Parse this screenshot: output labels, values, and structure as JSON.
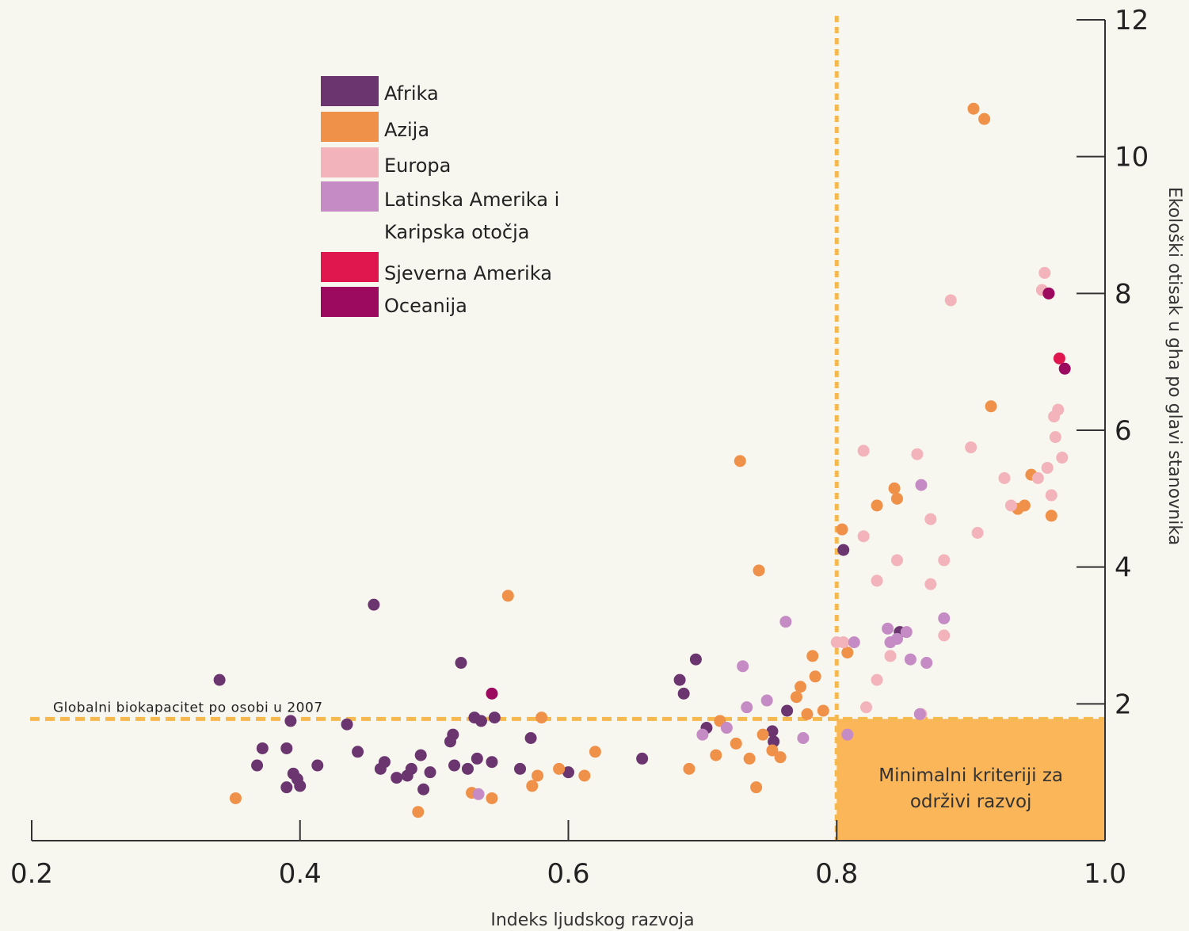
{
  "chart_data": {
    "type": "scatter",
    "xlabel": "Indeks ljudskog razvoja",
    "ylabel": "Ekološki otisak u gha po glavi stanovnika",
    "xlim": [
      0.2,
      1.0
    ],
    "ylim": [
      0,
      12
    ],
    "x_ticks": [
      "0.2",
      "0.4",
      "0.6",
      "0.8",
      "1.0"
    ],
    "y_ticks": [
      "2",
      "4",
      "6",
      "8",
      "10",
      "12"
    ],
    "y_axis_position": "right",
    "grid": false,
    "legend_position": "top-left",
    "annotations": {
      "biocapacity_label": "Globalni biokapacitet po osobi u 2007",
      "biocapacity_y": 1.78,
      "hdi_threshold_x": 0.8,
      "sustainable_box_line1": "Minimalni kriteriji za",
      "sustainable_box_line2": "održivi razvoj"
    },
    "series": [
      {
        "name": "Afrika",
        "color": "#6b3670",
        "points": [
          [
            0.34,
            2.35
          ],
          [
            0.368,
            1.1
          ],
          [
            0.372,
            1.35
          ],
          [
            0.39,
            0.78
          ],
          [
            0.39,
            1.35
          ],
          [
            0.393,
            1.75
          ],
          [
            0.395,
            0.98
          ],
          [
            0.398,
            0.9
          ],
          [
            0.4,
            0.8
          ],
          [
            0.413,
            1.1
          ],
          [
            0.435,
            1.7
          ],
          [
            0.443,
            1.3
          ],
          [
            0.455,
            3.45
          ],
          [
            0.46,
            1.05
          ],
          [
            0.463,
            1.15
          ],
          [
            0.472,
            0.92
          ],
          [
            0.48,
            0.95
          ],
          [
            0.483,
            1.05
          ],
          [
            0.49,
            1.25
          ],
          [
            0.492,
            0.75
          ],
          [
            0.497,
            1.0
          ],
          [
            0.512,
            1.45
          ],
          [
            0.514,
            1.55
          ],
          [
            0.515,
            1.1
          ],
          [
            0.52,
            2.6
          ],
          [
            0.525,
            1.05
          ],
          [
            0.53,
            1.8
          ],
          [
            0.532,
            1.2
          ],
          [
            0.535,
            1.75
          ],
          [
            0.543,
            1.15
          ],
          [
            0.545,
            1.8
          ],
          [
            0.564,
            1.05
          ],
          [
            0.572,
            1.5
          ],
          [
            0.6,
            1.0
          ],
          [
            0.655,
            1.2
          ],
          [
            0.683,
            2.35
          ],
          [
            0.686,
            2.15
          ],
          [
            0.695,
            2.65
          ],
          [
            0.703,
            1.65
          ],
          [
            0.752,
            1.6
          ],
          [
            0.753,
            1.45
          ],
          [
            0.763,
            1.9
          ],
          [
            0.805,
            4.25
          ],
          [
            0.847,
            3.05
          ]
        ]
      },
      {
        "name": "Azija",
        "color": "#f0914a",
        "points": [
          [
            0.352,
            0.62
          ],
          [
            0.488,
            0.42
          ],
          [
            0.528,
            0.7
          ],
          [
            0.543,
            0.62
          ],
          [
            0.555,
            3.58
          ],
          [
            0.573,
            0.8
          ],
          [
            0.577,
            0.95
          ],
          [
            0.58,
            1.8
          ],
          [
            0.593,
            1.05
          ],
          [
            0.612,
            0.95
          ],
          [
            0.62,
            1.3
          ],
          [
            0.69,
            1.05
          ],
          [
            0.71,
            1.25
          ],
          [
            0.713,
            1.75
          ],
          [
            0.725,
            1.42
          ],
          [
            0.728,
            5.55
          ],
          [
            0.735,
            1.2
          ],
          [
            0.74,
            0.78
          ],
          [
            0.742,
            3.95
          ],
          [
            0.745,
            1.55
          ],
          [
            0.752,
            1.32
          ],
          [
            0.758,
            1.22
          ],
          [
            0.77,
            2.1
          ],
          [
            0.773,
            2.25
          ],
          [
            0.778,
            1.85
          ],
          [
            0.782,
            2.7
          ],
          [
            0.784,
            2.4
          ],
          [
            0.79,
            1.9
          ],
          [
            0.804,
            4.55
          ],
          [
            0.808,
            2.75
          ],
          [
            0.83,
            4.9
          ],
          [
            0.843,
            5.15
          ],
          [
            0.845,
            5.0
          ],
          [
            0.902,
            10.7
          ],
          [
            0.91,
            10.55
          ],
          [
            0.915,
            6.35
          ],
          [
            0.935,
            4.85
          ],
          [
            0.94,
            4.9
          ],
          [
            0.945,
            5.35
          ],
          [
            0.96,
            4.75
          ]
        ]
      },
      {
        "name": "Europa",
        "color": "#f2b3ba",
        "points": [
          [
            0.8,
            2.9
          ],
          [
            0.805,
            2.9
          ],
          [
            0.82,
            5.7
          ],
          [
            0.82,
            4.45
          ],
          [
            0.822,
            1.95
          ],
          [
            0.83,
            3.8
          ],
          [
            0.83,
            2.35
          ],
          [
            0.84,
            2.7
          ],
          [
            0.845,
            4.1
          ],
          [
            0.86,
            5.65
          ],
          [
            0.863,
            1.85
          ],
          [
            0.87,
            4.7
          ],
          [
            0.87,
            3.75
          ],
          [
            0.88,
            3.0
          ],
          [
            0.88,
            4.1
          ],
          [
            0.885,
            7.9
          ],
          [
            0.9,
            5.75
          ],
          [
            0.905,
            4.5
          ],
          [
            0.925,
            5.3
          ],
          [
            0.93,
            4.9
          ],
          [
            0.95,
            5.3
          ],
          [
            0.953,
            8.05
          ],
          [
            0.955,
            8.3
          ],
          [
            0.957,
            5.45
          ],
          [
            0.96,
            5.05
          ],
          [
            0.962,
            6.2
          ],
          [
            0.963,
            5.9
          ],
          [
            0.965,
            6.3
          ],
          [
            0.968,
            5.6
          ]
        ]
      },
      {
        "name": "Latinska Amerika i Karipska otočja",
        "color": "#c58bc4",
        "points": [
          [
            0.533,
            0.68
          ],
          [
            0.7,
            1.55
          ],
          [
            0.718,
            1.65
          ],
          [
            0.73,
            2.55
          ],
          [
            0.733,
            1.95
          ],
          [
            0.748,
            2.05
          ],
          [
            0.762,
            3.2
          ],
          [
            0.775,
            1.5
          ],
          [
            0.808,
            1.55
          ],
          [
            0.813,
            2.9
          ],
          [
            0.838,
            3.1
          ],
          [
            0.84,
            2.9
          ],
          [
            0.845,
            2.95
          ],
          [
            0.852,
            3.05
          ],
          [
            0.855,
            2.65
          ],
          [
            0.862,
            1.85
          ],
          [
            0.863,
            5.2
          ],
          [
            0.867,
            2.6
          ],
          [
            0.88,
            3.25
          ]
        ]
      },
      {
        "name": "Sjeverna Amerika",
        "color": "#e0174f",
        "points": [
          [
            0.958,
            8.0
          ],
          [
            0.966,
            7.05
          ]
        ]
      },
      {
        "name": "Oceanija",
        "color": "#9b0a5f",
        "points": [
          [
            0.543,
            2.15
          ],
          [
            0.958,
            8.0
          ],
          [
            0.97,
            6.9
          ]
        ]
      }
    ]
  }
}
